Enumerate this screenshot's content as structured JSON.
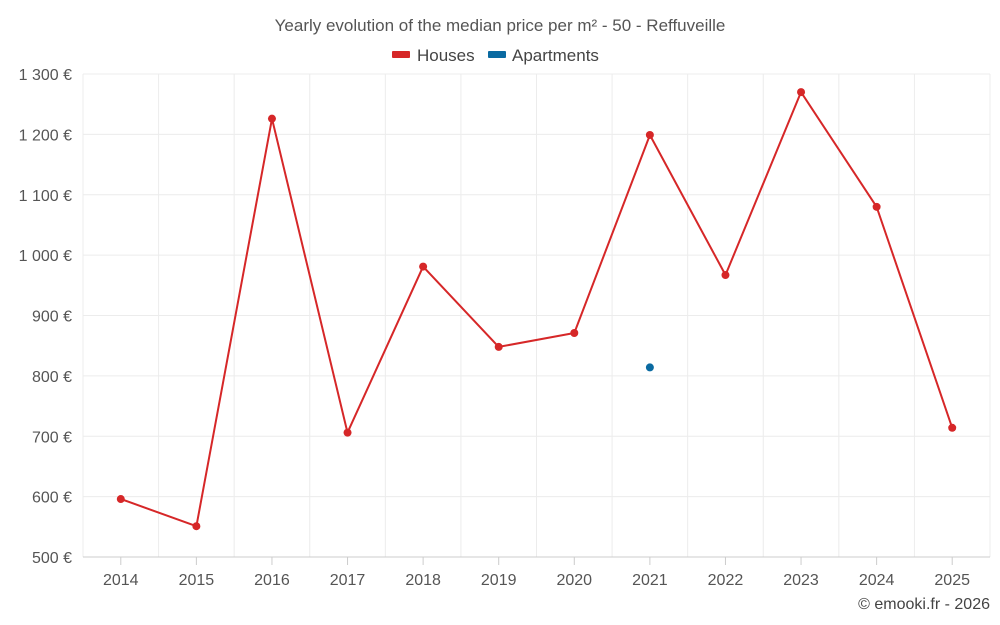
{
  "chart_data": {
    "type": "line",
    "title": "Yearly evolution of the median price per m² - 50 - Reffuveille",
    "categories": [
      "2014",
      "2015",
      "2016",
      "2017",
      "2018",
      "2019",
      "2020",
      "2021",
      "2022",
      "2023",
      "2024",
      "2025"
    ],
    "series": [
      {
        "name": "Houses",
        "color": "#d62728",
        "values": [
          596,
          551,
          1226,
          706,
          981,
          848,
          871,
          1199,
          967,
          1270,
          1080,
          714
        ]
      },
      {
        "name": "Apartments",
        "color": "#0a6aa1",
        "values": [
          null,
          null,
          null,
          null,
          null,
          null,
          null,
          814,
          null,
          null,
          null,
          null
        ]
      }
    ],
    "ylim": [
      500,
      1300
    ],
    "yticks": [
      {
        "value": 1300,
        "label": "1 300 €"
      },
      {
        "value": 1200,
        "label": "1 200 €"
      },
      {
        "value": 1100,
        "label": "1 100 €"
      },
      {
        "value": 1000,
        "label": "1 000 €"
      },
      {
        "value": 900,
        "label": "900 €"
      },
      {
        "value": 800,
        "label": "800 €"
      },
      {
        "value": 700,
        "label": "700 €"
      },
      {
        "value": 600,
        "label": "600 €"
      },
      {
        "value": 500,
        "label": "500 €"
      }
    ],
    "xlabel": "",
    "ylabel": "",
    "grid": true,
    "legend": "top-center"
  },
  "credit": "© emooki.fr - 2026"
}
